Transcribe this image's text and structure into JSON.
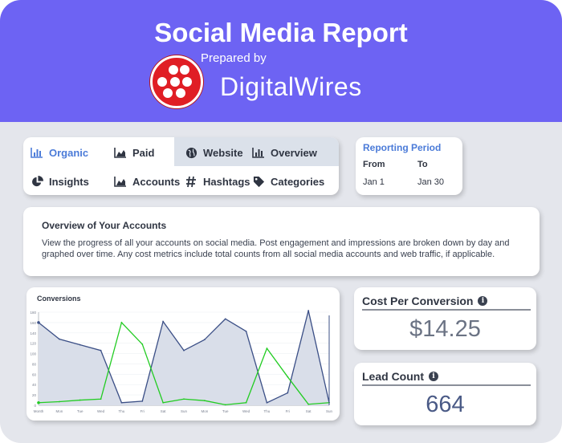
{
  "header": {
    "title": "Social Media Report",
    "prepared_by": "Prepared by",
    "brand": "DigitalWires",
    "header_color": "#6d63f3",
    "logo_color": "#e01e25"
  },
  "nav": {
    "items": [
      {
        "label": "Organic",
        "icon": "bar-chart-icon",
        "selected": true
      },
      {
        "label": "Paid",
        "icon": "area-chart-icon"
      },
      {
        "label": "Website",
        "icon": "globe-icon",
        "highlighted": true
      },
      {
        "label": "Overview",
        "icon": "bar-chart-icon",
        "highlighted": true
      },
      {
        "label": "Insights",
        "icon": "pie-chart-icon"
      },
      {
        "label": "Accounts",
        "icon": "area-chart-icon"
      },
      {
        "label": "Hashtags",
        "icon": "hashtag-icon"
      },
      {
        "label": "Categories",
        "icon": "tag-icon"
      }
    ]
  },
  "period": {
    "title": "Reporting Period",
    "from_label": "From",
    "to_label": "To",
    "from_value": "Jan 1",
    "to_value": "Jan 30"
  },
  "overview": {
    "title": "Overview of Your Accounts",
    "text": "View the progress of all your accounts on social media. Post engagement and impressions are broken down by day and graphed over time. Any cost metrics include total counts from all social media accounts and web traffic, if applicable."
  },
  "metrics": {
    "cost_per_conversion": {
      "label": "Cost Per Conversion",
      "value": "$14.25"
    },
    "lead_count": {
      "label": "Lead Count",
      "value": "664"
    }
  },
  "chart_data": {
    "type": "area",
    "title": "Conversions",
    "categories": [
      "Month",
      "Mon",
      "Tue",
      "Wed",
      "Thu",
      "Fri",
      "Sat",
      "Sun",
      "Mon",
      "Tue",
      "Wed",
      "Thu",
      "Fri",
      "Sat",
      "Sun"
    ],
    "y_ticks": [
      0,
      20,
      40,
      60,
      80,
      100,
      120,
      140,
      160,
      180
    ],
    "ylim": [
      0,
      180
    ],
    "series": [
      {
        "values": [
          160,
          128,
          117,
          106,
          5,
          8,
          162,
          106,
          127,
          167,
          143,
          5,
          24,
          183,
          5
        ],
        "color": "#3b4f86",
        "fill": "#d9dee9"
      },
      {
        "values": [
          5,
          7,
          10,
          12,
          160,
          118,
          5,
          12,
          9,
          1,
          5,
          110,
          55,
          2,
          5
        ],
        "color": "#22cc22"
      }
    ]
  }
}
